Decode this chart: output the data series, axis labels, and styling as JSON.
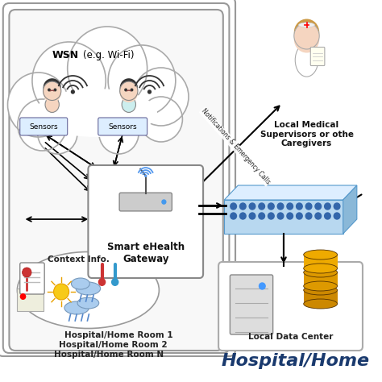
{
  "title": "Hospital/Home",
  "background_color": "#ffffff",
  "room_labels": [
    "Hospital/Home Room 1",
    "Hospital/Home Room 2",
    "Hospital/Home Room N"
  ],
  "gateway_label": "Smart eHealth\nGateway",
  "wsn_label": "WSN (e.g. Wi-Fi)",
  "sensors_label": "Sensors",
  "context_label": "Context Info.",
  "local_dc_label": "Local Data Center",
  "caregiver_label": "Local Medical\nSupervisors or othe\nCaregivers",
  "notification_label": "Notifications & Emergency Calls"
}
